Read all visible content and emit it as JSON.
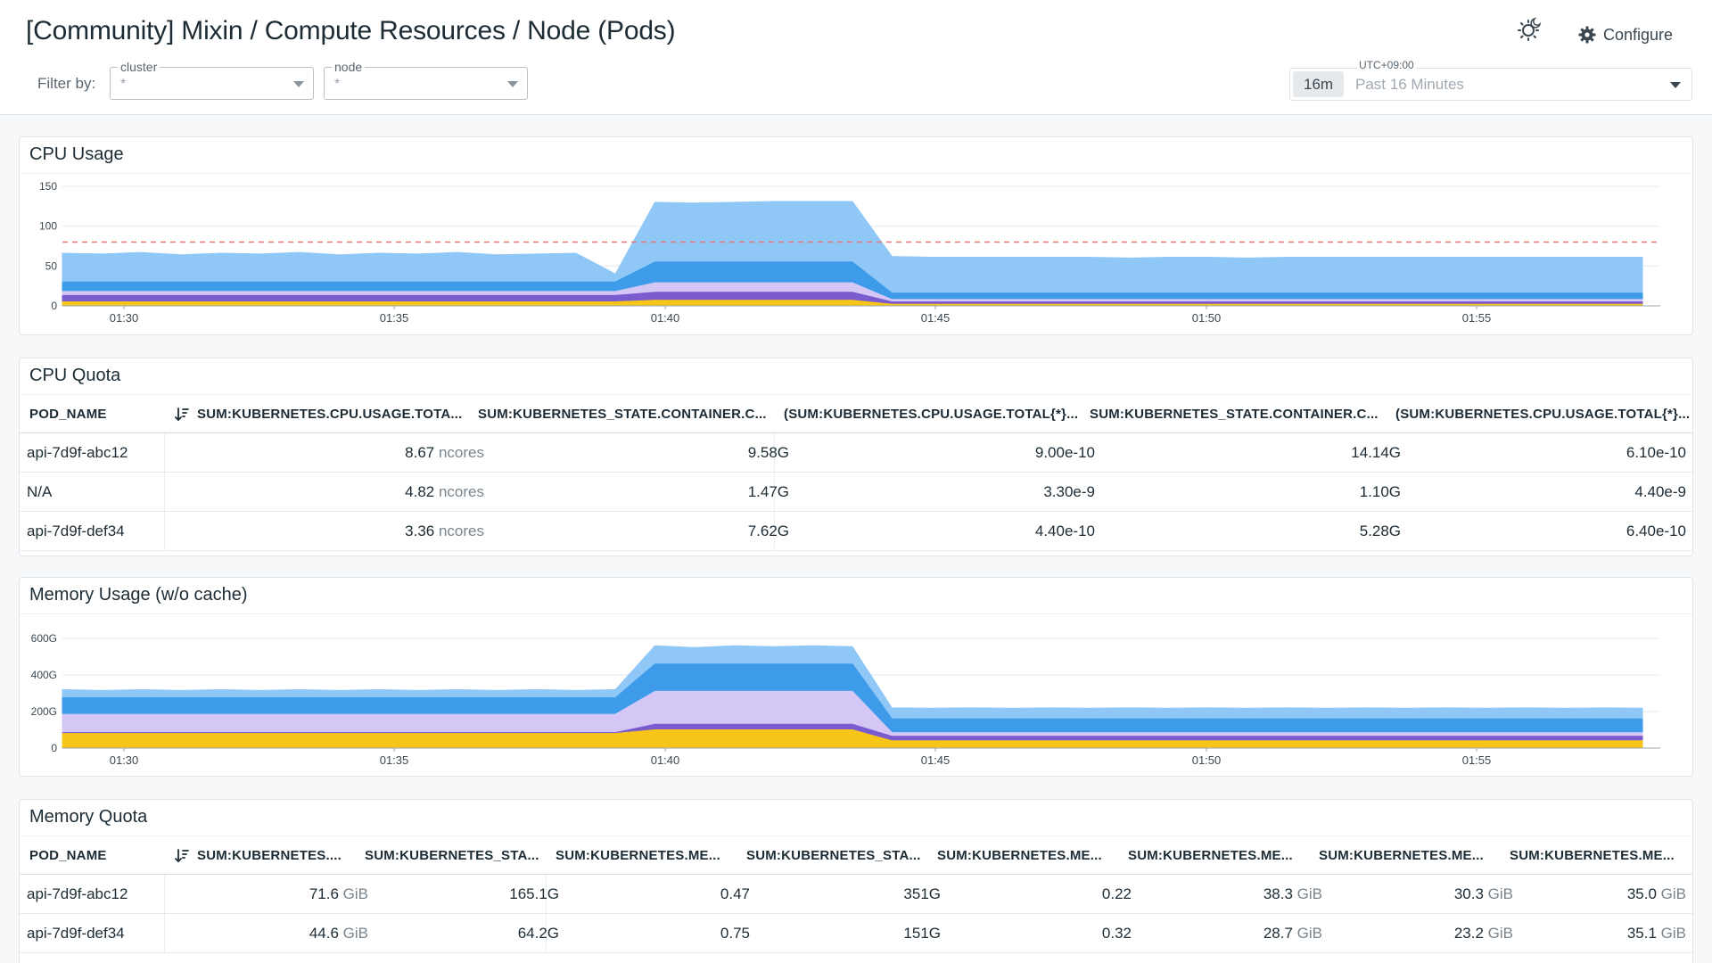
{
  "header": {
    "title": "[Community] Mixin / Compute Resources / Node (Pods)",
    "filter_label": "Filter by:",
    "filters": [
      {
        "label": "cluster",
        "value": "*"
      },
      {
        "label": "node",
        "value": "*"
      }
    ],
    "configure_label": "Configure",
    "time": {
      "timezone": "UTC+09:00",
      "badge": "16m",
      "range": "Past 16 Minutes"
    }
  },
  "icons": {
    "theme": "sun-moon-icon",
    "configure": "gear-icon",
    "sort": "sort-descending-icon",
    "dropdown": "chevron-down-icon"
  },
  "colors": {
    "light_blue": "#8fc7f7",
    "blue": "#3d9be9",
    "lavender": "#d4c6f5",
    "purple": "#7b5ccf",
    "yellow": "#f7c518",
    "threshold": "#e87878"
  },
  "cpu_usage": {
    "title": "CPU Usage",
    "chart_data": {
      "type": "area",
      "stacked": true,
      "y_ticks": [
        "150",
        "100",
        "50",
        "0"
      ],
      "ylim": [
        0,
        150
      ],
      "x_ticks": [
        "01:30",
        "01:35",
        "01:40",
        "01:45",
        "01:50",
        "01:55"
      ],
      "threshold": 80,
      "series": [
        {
          "values": [
            5,
            5,
            5,
            5,
            5,
            5,
            5,
            5,
            5,
            5,
            5,
            5,
            5,
            5,
            5,
            7,
            7,
            7,
            7,
            7,
            7,
            2,
            2,
            2,
            2,
            2,
            2,
            2,
            2,
            2,
            2,
            2,
            2,
            2,
            2,
            2,
            2,
            2,
            2,
            2,
            2
          ]
        },
        {
          "values": [
            8,
            8,
            8,
            8,
            8,
            8,
            8,
            8,
            8,
            8,
            8,
            8,
            8,
            8,
            8,
            10,
            10,
            10,
            10,
            10,
            10,
            3,
            3,
            3,
            3,
            3,
            3,
            3,
            3,
            3,
            3,
            3,
            3,
            3,
            3,
            3,
            3,
            3,
            3,
            3,
            3
          ]
        },
        {
          "values": [
            5,
            5,
            5,
            5,
            5,
            5,
            5,
            5,
            5,
            5,
            5,
            5,
            5,
            5,
            5,
            12,
            12,
            12,
            12,
            12,
            12,
            3,
            3,
            3,
            3,
            3,
            3,
            3,
            3,
            3,
            3,
            3,
            3,
            3,
            3,
            3,
            3,
            3,
            3,
            3,
            3
          ]
        },
        {
          "values": [
            12,
            12,
            12,
            12,
            12,
            12,
            12,
            12,
            12,
            12,
            12,
            12,
            12,
            12,
            12,
            26,
            26,
            26,
            26,
            26,
            26,
            8,
            8,
            8,
            8,
            8,
            8,
            8,
            8,
            8,
            8,
            8,
            8,
            8,
            8,
            8,
            8,
            8,
            8,
            8,
            8
          ]
        },
        {
          "values": [
            36,
            35,
            37,
            34,
            36,
            35,
            37,
            34,
            36,
            35,
            37,
            34,
            35,
            36,
            10,
            75,
            74,
            75,
            76,
            76,
            76,
            46,
            45,
            45,
            45,
            45,
            45,
            44,
            45,
            45,
            44,
            45,
            45,
            45,
            45,
            45,
            45,
            45,
            45,
            45,
            45
          ]
        }
      ]
    }
  },
  "cpu_quota": {
    "title": "CPU Quota",
    "columns": [
      "POD_NAME",
      "SUM:KUBERNETES.CPU.USAGE.TOTA...",
      "SUM:KUBERNETES_STATE.CONTAINER.C...",
      "(SUM:KUBERNETES.CPU.USAGE.TOTAL{*}...",
      "SUM:KUBERNETES_STATE.CONTAINER.C...",
      "(SUM:KUBERNETES.CPU.USAGE.TOTAL{*}..."
    ],
    "rows": [
      {
        "pod": "api-7d9f-abc12",
        "c1": "8.67",
        "c1_unit": "ncores",
        "c2": "9.58G",
        "c3": "9.00e-10",
        "c4": "14.14G",
        "c5": "6.10e-10"
      },
      {
        "pod": "N/A",
        "c1": "4.82",
        "c1_unit": "ncores",
        "c2": "1.47G",
        "c3": "3.30e-9",
        "c4": "1.10G",
        "c5": "4.40e-9"
      },
      {
        "pod": "api-7d9f-def34",
        "c1": "3.36",
        "c1_unit": "ncores",
        "c2": "7.62G",
        "c3": "4.40e-10",
        "c4": "5.28G",
        "c5": "6.40e-10"
      }
    ]
  },
  "memory_usage": {
    "title": "Memory Usage (w/o cache)",
    "chart_data": {
      "type": "area",
      "stacked": true,
      "y_ticks": [
        "600G",
        "400G",
        "200G",
        "0"
      ],
      "ylim": [
        0,
        600
      ],
      "x_ticks": [
        "01:30",
        "01:35",
        "01:40",
        "01:45",
        "01:50",
        "01:55"
      ],
      "series": [
        {
          "values": [
            80,
            80,
            80,
            80,
            80,
            80,
            80,
            80,
            80,
            80,
            80,
            80,
            80,
            80,
            80,
            100,
            100,
            100,
            100,
            100,
            100,
            40,
            40,
            40,
            40,
            40,
            40,
            40,
            40,
            40,
            40,
            40,
            40,
            40,
            40,
            40,
            40,
            40,
            40,
            40,
            40
          ]
        },
        {
          "values": [
            5,
            5,
            5,
            5,
            5,
            5,
            5,
            5,
            5,
            5,
            5,
            5,
            5,
            5,
            5,
            30,
            30,
            30,
            30,
            30,
            30,
            25,
            25,
            25,
            25,
            25,
            25,
            25,
            25,
            25,
            25,
            25,
            25,
            25,
            25,
            25,
            25,
            25,
            25,
            25,
            25
          ]
        },
        {
          "values": [
            100,
            100,
            100,
            100,
            100,
            100,
            100,
            100,
            100,
            100,
            100,
            100,
            100,
            100,
            100,
            180,
            180,
            180,
            180,
            180,
            180,
            20,
            20,
            20,
            20,
            20,
            20,
            20,
            20,
            20,
            20,
            20,
            20,
            20,
            20,
            20,
            20,
            20,
            20,
            20,
            20
          ]
        },
        {
          "values": [
            90,
            90,
            90,
            90,
            90,
            90,
            90,
            90,
            90,
            90,
            90,
            90,
            90,
            90,
            90,
            150,
            150,
            150,
            150,
            150,
            150,
            75,
            75,
            75,
            75,
            75,
            75,
            75,
            75,
            75,
            75,
            75,
            75,
            75,
            75,
            75,
            75,
            75,
            75,
            75,
            75
          ]
        },
        {
          "values": [
            45,
            40,
            45,
            40,
            45,
            40,
            45,
            40,
            45,
            40,
            45,
            40,
            45,
            40,
            45,
            100,
            90,
            100,
            95,
            100,
            95,
            60,
            58,
            60,
            58,
            60,
            58,
            60,
            58,
            60,
            58,
            60,
            58,
            60,
            58,
            60,
            58,
            60,
            58,
            60,
            58
          ]
        }
      ]
    }
  },
  "memory_quota": {
    "title": "Memory Quota",
    "columns": [
      "POD_NAME",
      "SUM:KUBERNETES....",
      "SUM:KUBERNETES_STA...",
      "SUM:KUBERNETES.ME...",
      "SUM:KUBERNETES_STA...",
      "SUM:KUBERNETES.ME...",
      "SUM:KUBERNETES.ME...",
      "SUM:KUBERNETES.ME...",
      "SUM:KUBERNETES.ME..."
    ],
    "rows": [
      {
        "pod": "api-7d9f-abc12",
        "c1": "71.6",
        "c1_unit": "GiB",
        "c2": "165.1G",
        "c3": "0.47",
        "c4": "351G",
        "c5": "0.22",
        "c6": "38.3",
        "c6_unit": "GiB",
        "c7": "30.3",
        "c7_unit": "GiB",
        "c8": "35.0",
        "c8_unit": "GiB"
      },
      {
        "pod": "api-7d9f-def34",
        "c1": "44.6",
        "c1_unit": "GiB",
        "c2": "64.2G",
        "c3": "0.75",
        "c4": "151G",
        "c5": "0.32",
        "c6": "28.7",
        "c6_unit": "GiB",
        "c7": "23.2",
        "c7_unit": "GiB",
        "c8": "35.1",
        "c8_unit": "GiB"
      }
    ]
  }
}
